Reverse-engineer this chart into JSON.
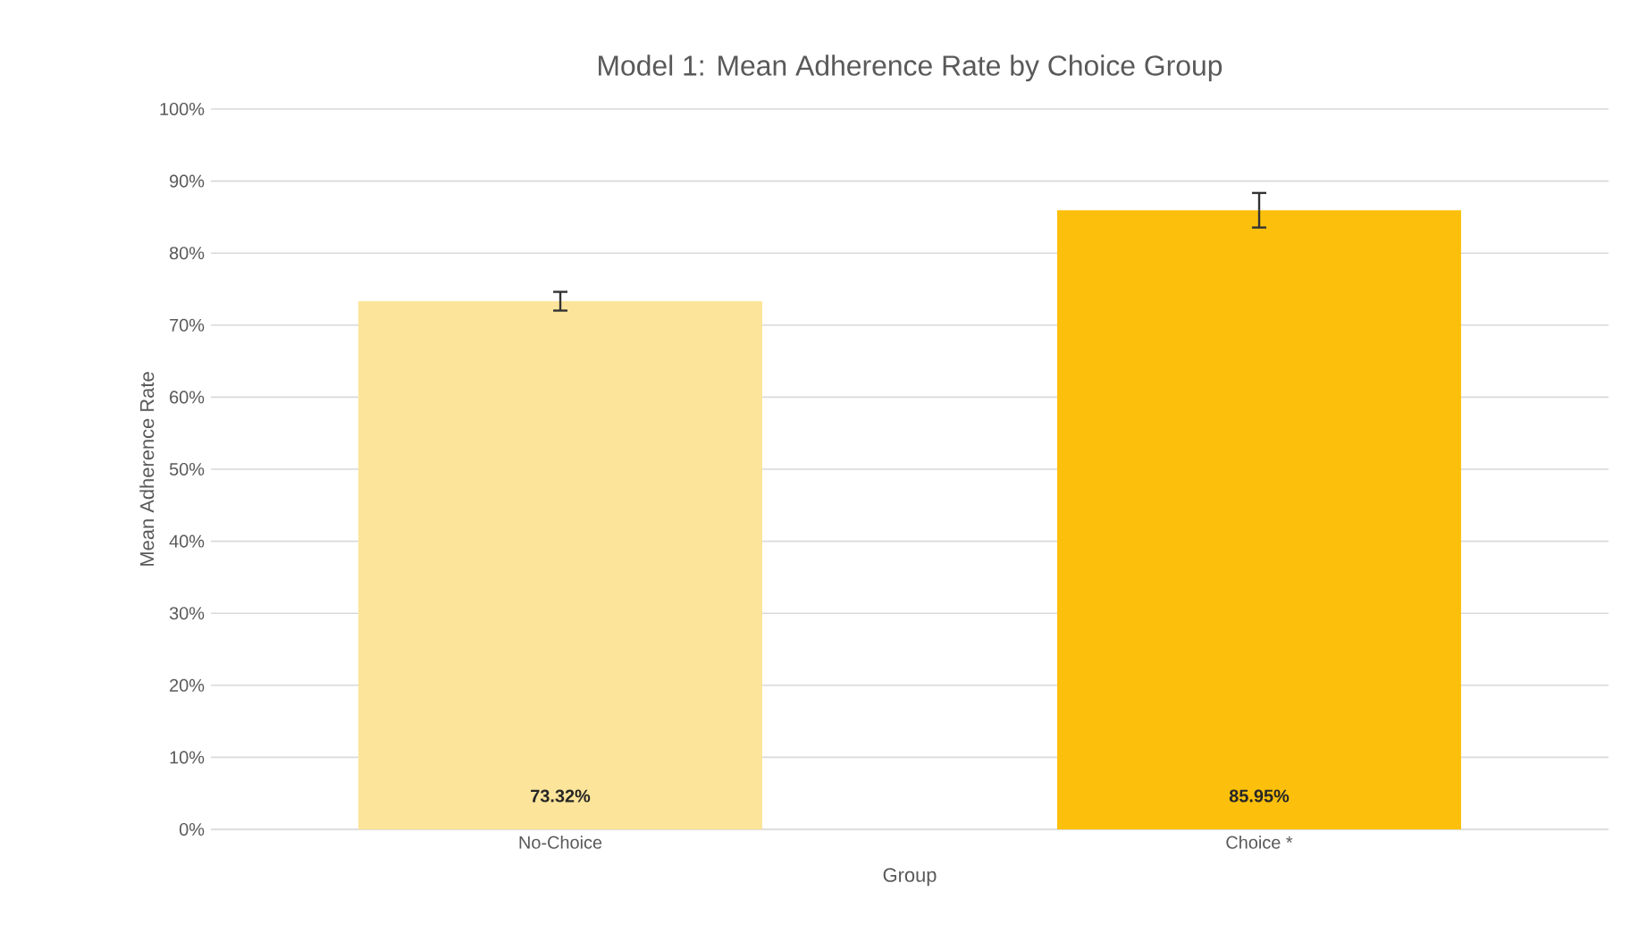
{
  "chart_data": {
    "type": "bar",
    "title": "Model 1: Mean Adherence Rate by Choice Group",
    "xlabel": "Group",
    "ylabel": "Mean Adherence Rate",
    "categories": [
      "No-Choice",
      "Choice *"
    ],
    "values": [
      73.32,
      85.95
    ],
    "colors": [
      "#fce59a",
      "#fcc00c"
    ],
    "errors": [
      1.3,
      2.4
    ],
    "value_labels": [
      "73.32%",
      "85.95%"
    ],
    "ylim": [
      0,
      100
    ],
    "yticks": [
      {
        "value": 0,
        "label": "0%"
      },
      {
        "value": 10,
        "label": "10%"
      },
      {
        "value": 20,
        "label": "20%"
      },
      {
        "value": 30,
        "label": "30%"
      },
      {
        "value": 40,
        "label": "40%"
      },
      {
        "value": 50,
        "label": "50%"
      },
      {
        "value": 60,
        "label": "60%"
      },
      {
        "value": 70,
        "label": "70%"
      },
      {
        "value": 80,
        "label": "80%"
      },
      {
        "value": 90,
        "label": "90%"
      },
      {
        "value": 100,
        "label": "100%"
      }
    ],
    "grid": "y"
  }
}
